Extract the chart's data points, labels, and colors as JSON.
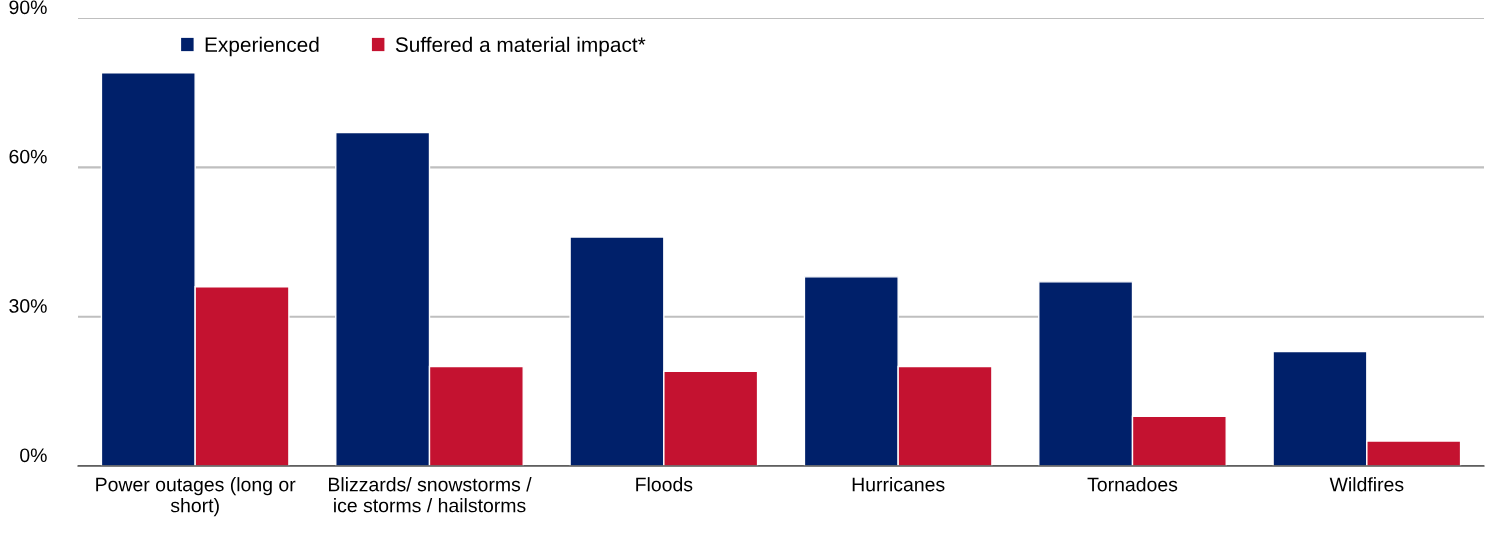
{
  "chart_data": {
    "type": "bar",
    "categories": [
      "Power outages (long or\nshort)",
      "Blizzards/ snowstorms /\nice storms / hailstorms",
      "Floods",
      "Hurricanes",
      "Tornadoes",
      "Wildfires"
    ],
    "series": [
      {
        "name": "Experienced",
        "color": "#00206a",
        "values": [
          79,
          67,
          46,
          38,
          37,
          23
        ]
      },
      {
        "name": "Suffered a material impact*",
        "color": "#c41230",
        "values": [
          36,
          20,
          19,
          20,
          10,
          5
        ]
      }
    ],
    "ylim": [
      0,
      90
    ],
    "yticks": [
      {
        "value": 0,
        "label": "0%"
      },
      {
        "value": 30,
        "label": "30%"
      },
      {
        "value": 60,
        "label": "60%"
      },
      {
        "value": 90,
        "label": "90%"
      }
    ],
    "grid": "y",
    "legend": "top left"
  }
}
